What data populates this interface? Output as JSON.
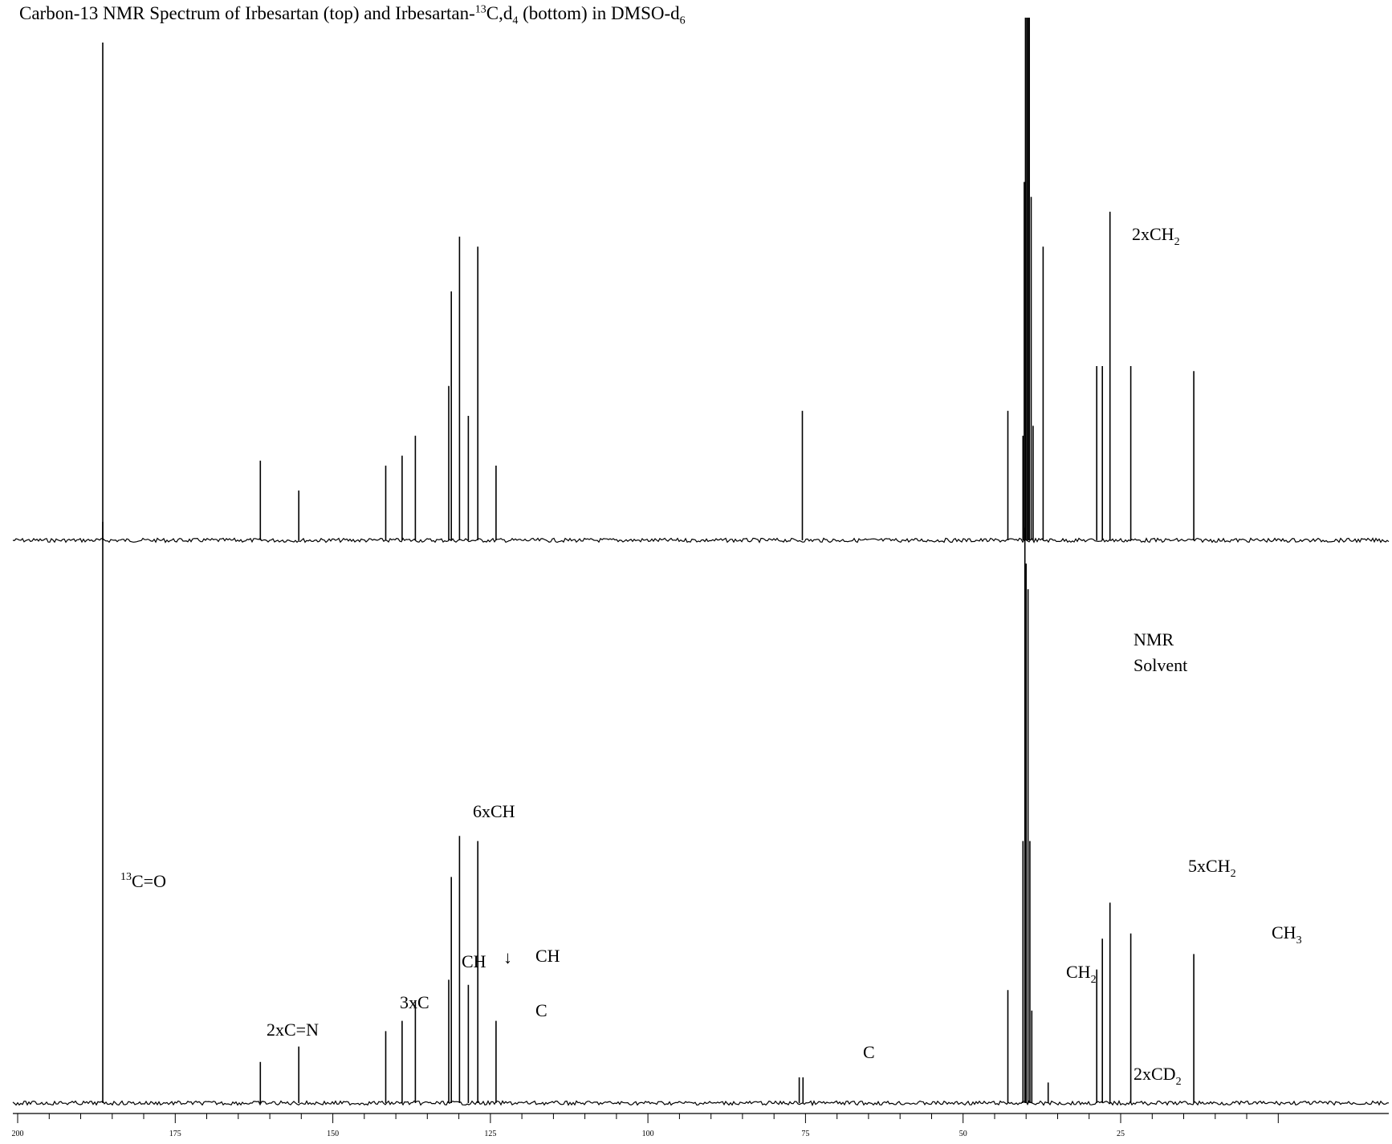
{
  "title": {
    "prefix": "Carbon-13 NMR Spectrum of Irbesartan (top) and Irbesartan-",
    "sup": "13",
    "mid": "C,d",
    "sub1": "4",
    "mid2": " (bottom) in DMSO-d",
    "sub2": "6"
  },
  "chart_data": {
    "type": "line",
    "xlabel": "",
    "ylabel": "",
    "xlim": [
      200,
      0
    ],
    "x_ticks": [
      200,
      175,
      150,
      125,
      100,
      75,
      50,
      25
    ],
    "grid": false,
    "series": [
      {
        "name": "Irbesartan (top)",
        "peaks": [
          {
            "x": 186.5,
            "y": 1.0
          },
          {
            "x": 161.5,
            "y": 0.16
          },
          {
            "x": 155.4,
            "y": 0.1
          },
          {
            "x": 141.6,
            "y": 0.15
          },
          {
            "x": 139.0,
            "y": 0.17
          },
          {
            "x": 136.9,
            "y": 0.21
          },
          {
            "x": 131.6,
            "y": 0.31
          },
          {
            "x": 131.2,
            "y": 0.5
          },
          {
            "x": 129.9,
            "y": 0.61
          },
          {
            "x": 128.5,
            "y": 0.25
          },
          {
            "x": 127.0,
            "y": 0.59
          },
          {
            "x": 124.1,
            "y": 0.15
          },
          {
            "x": 75.5,
            "y": 0.26
          },
          {
            "x": 42.9,
            "y": 0.26
          },
          {
            "x": 40.5,
            "y": 0.21
          },
          {
            "x": 40.3,
            "y": 0.72
          },
          {
            "x": 40.1,
            "y": 1.05
          },
          {
            "x": 39.9,
            "y": 1.05
          },
          {
            "x": 39.7,
            "y": 1.05
          },
          {
            "x": 39.5,
            "y": 1.05
          },
          {
            "x": 39.2,
            "y": 0.69
          },
          {
            "x": 38.9,
            "y": 0.23
          },
          {
            "x": 37.3,
            "y": 0.59
          },
          {
            "x": 28.8,
            "y": 0.35
          },
          {
            "x": 27.9,
            "y": 0.35
          },
          {
            "x": 26.7,
            "y": 0.66
          },
          {
            "x": 23.4,
            "y": 0.35
          },
          {
            "x": 13.4,
            "y": 0.34
          }
        ]
      },
      {
        "name": "Irbesartan-13C,d4 (bottom)",
        "peaks": [
          {
            "x": 186.5,
            "y": 1.15
          },
          {
            "x": 161.5,
            "y": 0.08
          },
          {
            "x": 155.4,
            "y": 0.11
          },
          {
            "x": 141.6,
            "y": 0.14
          },
          {
            "x": 139.0,
            "y": 0.16
          },
          {
            "x": 136.9,
            "y": 0.2
          },
          {
            "x": 131.6,
            "y": 0.24
          },
          {
            "x": 131.2,
            "y": 0.44
          },
          {
            "x": 129.9,
            "y": 0.52
          },
          {
            "x": 128.5,
            "y": 0.23
          },
          {
            "x": 127.0,
            "y": 0.51
          },
          {
            "x": 124.1,
            "y": 0.16
          },
          {
            "x": 76.0,
            "y": 0.05
          },
          {
            "x": 75.4,
            "y": 0.05
          },
          {
            "x": 42.9,
            "y": 0.22
          },
          {
            "x": 40.5,
            "y": 0.51
          },
          {
            "x": 40.2,
            "y": 1.12
          },
          {
            "x": 40.0,
            "y": 1.05
          },
          {
            "x": 39.7,
            "y": 1.0
          },
          {
            "x": 39.4,
            "y": 0.51
          },
          {
            "x": 39.1,
            "y": 0.18
          },
          {
            "x": 36.5,
            "y": 0.04
          },
          {
            "x": 28.8,
            "y": 0.26
          },
          {
            "x": 27.9,
            "y": 0.32
          },
          {
            "x": 26.7,
            "y": 0.39
          },
          {
            "x": 23.4,
            "y": 0.33
          },
          {
            "x": 13.4,
            "y": 0.29
          }
        ]
      }
    ],
    "annotations": [
      {
        "text": "2xCH",
        "sub": "2",
        "x": 38.0
      },
      {
        "text": "NMR",
        "x": 38.0
      },
      {
        "text": "Solvent",
        "x": 38.0
      },
      {
        "text": "6xCH",
        "x": 129.8
      },
      {
        "sup": "13",
        "text": "C=O",
        "x": 180.0
      },
      {
        "text": "CH",
        "x": 131.5
      },
      {
        "text": "↓",
        "x": 128.4
      },
      {
        "text": "CH",
        "x": 125.5
      },
      {
        "text": "C",
        "x": 124.1
      },
      {
        "text": "3xC",
        "x": 139.5
      },
      {
        "text": "2xC=N",
        "x": 156.5
      },
      {
        "text": "C",
        "x": 75.8
      },
      {
        "text": "CH",
        "sub": "2",
        "x": 43.0
      },
      {
        "text": "2xCD",
        "sub": "2",
        "x": 33.0
      },
      {
        "text": "5xCH",
        "sub": "2",
        "x": 26.0
      },
      {
        "text": "CH",
        "sub": "3",
        "x": 16.0
      }
    ]
  }
}
